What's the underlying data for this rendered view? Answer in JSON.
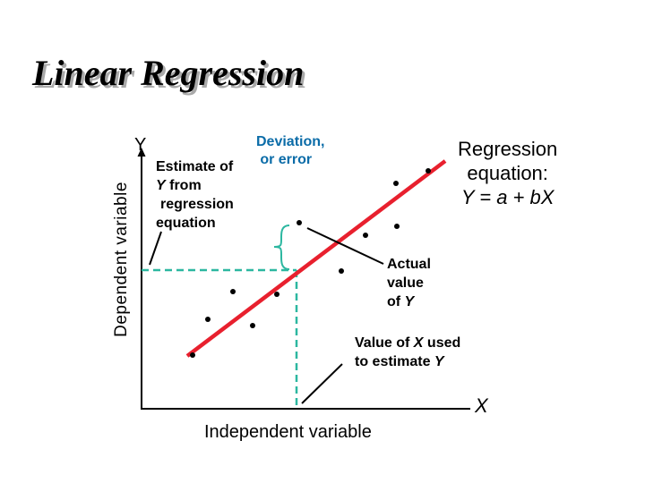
{
  "title": "Linear Regression",
  "y_axis": {
    "symbol": "Y",
    "label": "Dependent variable"
  },
  "x_axis": {
    "symbol": "X",
    "label": "Independent variable"
  },
  "annotations": {
    "deviation": {
      "line1": "Deviation,",
      "line2": "or error"
    },
    "estimate": {
      "line1": "Estimate of",
      "line2_var": "Y",
      "line2_rest": " from",
      "line3": "regression",
      "line4": "equation"
    },
    "regression_equation": {
      "line1": "Regression",
      "line2": "equation:",
      "line3": "Y = a + bX"
    },
    "actual_value": {
      "line1": "Actual",
      "line2": "value",
      "line3_prefix": "of ",
      "line3_var": "Y"
    },
    "value_of_x": {
      "line1_prefix": "Value of ",
      "line1_var": "X",
      "line1_suffix": " used",
      "line2_prefix": "to estimate ",
      "line2_var": "Y"
    }
  },
  "colors": {
    "regression_line": "#e8202e",
    "guide_lines": "#2cb7a0",
    "deviation_brace": "#2cb7a0",
    "deviation_text": "#0b6ca8"
  },
  "icons": [
    "y-axis-arrow",
    "deviation-brace"
  ]
}
